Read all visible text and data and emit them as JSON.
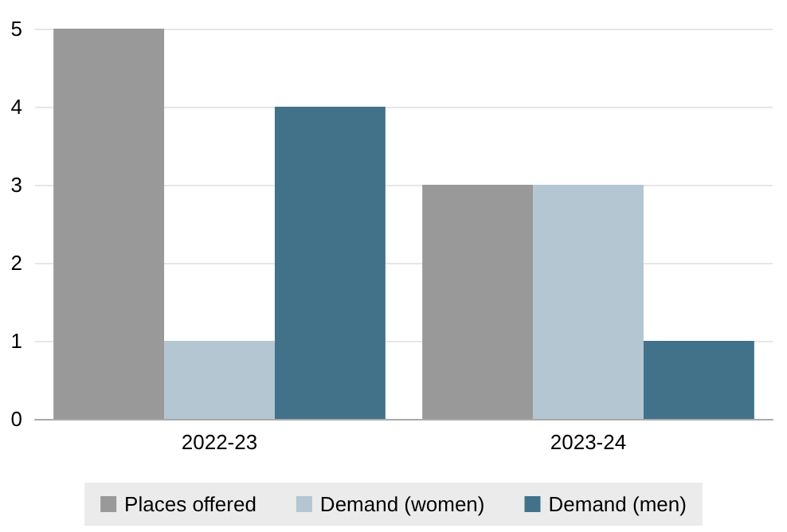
{
  "chart_data": {
    "type": "bar",
    "categories": [
      "2022-23",
      "2023-24"
    ],
    "series": [
      {
        "name": "Places offered",
        "color": "#999999",
        "values": [
          5,
          3
        ]
      },
      {
        "name": "Demand (women)",
        "color": "#b4c6d2",
        "values": [
          1,
          3
        ]
      },
      {
        "name": "Demand (men)",
        "color": "#41728a",
        "values": [
          4,
          1
        ]
      }
    ],
    "ylim": [
      0,
      5
    ],
    "yticks": [
      0,
      1,
      2,
      3,
      4,
      5
    ],
    "grid": "y",
    "legend": "bottom"
  }
}
